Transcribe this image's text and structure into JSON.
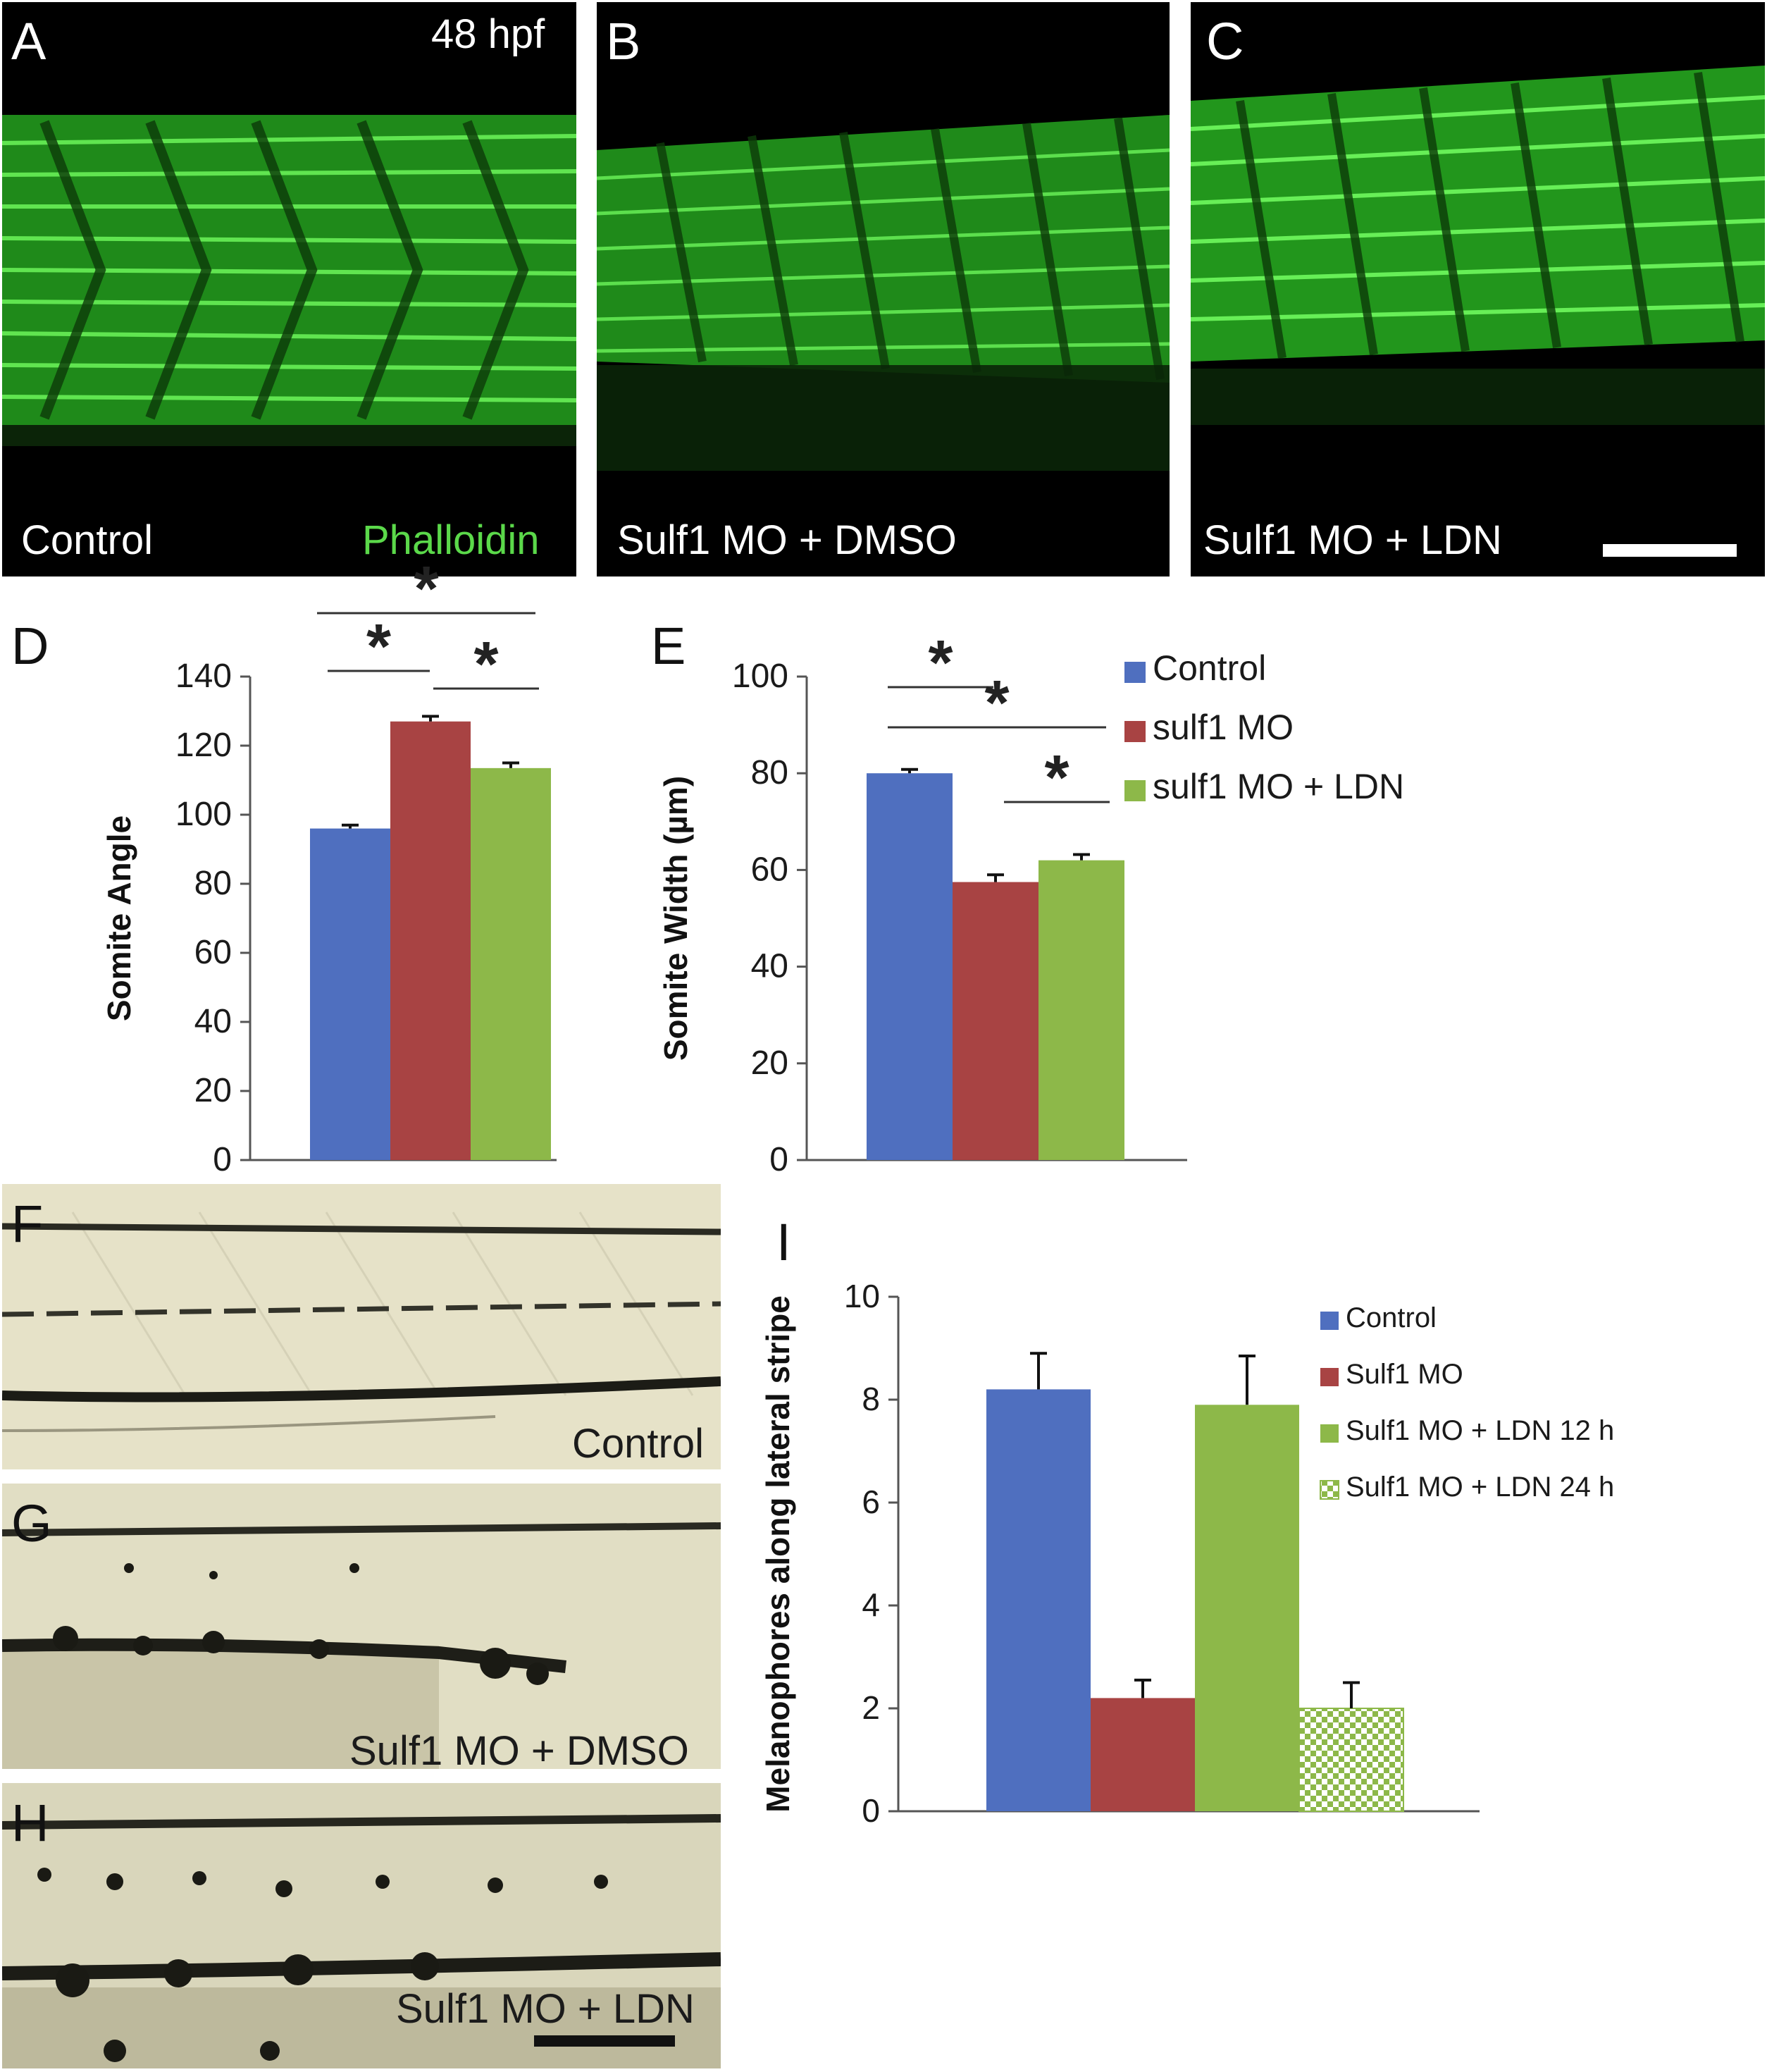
{
  "panels": {
    "A": {
      "letter": "A",
      "stage": "48 hpf",
      "condition": "Control",
      "stain": "Phalloidin"
    },
    "B": {
      "letter": "B",
      "condition": "Sulf1 MO + DMSO"
    },
    "C": {
      "letter": "C",
      "condition": "Sulf1 MO + LDN"
    },
    "D": {
      "letter": "D"
    },
    "E": {
      "letter": "E"
    },
    "F": {
      "letter": "F",
      "condition": "Control"
    },
    "G": {
      "letter": "G",
      "condition": "Sulf1 MO + DMSO"
    },
    "H": {
      "letter": "H",
      "condition": "Sulf1 MO + LDN"
    },
    "I": {
      "letter": "I"
    }
  },
  "colors": {
    "control": "#4f6fbf",
    "sulf1": "#a84343",
    "ldn": "#8db849",
    "phalloidin": "#5bd94a"
  },
  "chart_data": [
    {
      "id": "D",
      "type": "bar",
      "categories": [
        "Control",
        "sulf1 MO",
        "sulf1 MO + LDN"
      ],
      "series": [
        {
          "values": [
            96,
            127,
            113.5
          ],
          "errors": [
            1,
            1.5,
            1.5
          ]
        }
      ],
      "ylabel": "Somite Angle",
      "ylim": [
        0,
        140
      ],
      "yticks": [
        0,
        20,
        40,
        60,
        80,
        100,
        120,
        140
      ],
      "significance": [
        {
          "from": 0,
          "to": 2,
          "label": "*"
        },
        {
          "from": 0,
          "to": 1,
          "label": "*"
        },
        {
          "from": 1,
          "to": 2,
          "label": "*"
        }
      ],
      "grid": false
    },
    {
      "id": "E",
      "type": "bar",
      "categories": [
        "Control",
        "sulf1 MO",
        "sulf1 MO + LDN"
      ],
      "series": [
        {
          "values": [
            80,
            57.5,
            62
          ],
          "errors": [
            0.8,
            1.5,
            1.2
          ]
        }
      ],
      "ylabel": "Somite Width (µm)",
      "ylim": [
        0,
        100
      ],
      "yticks": [
        0,
        20,
        40,
        60,
        80,
        100
      ],
      "legend": [
        "Control",
        "sulf1 MO",
        "sulf1 MO + LDN"
      ],
      "legend_position": "right",
      "significance": [
        {
          "from": 0,
          "to": 1,
          "label": "*"
        },
        {
          "from": 0,
          "to": 2,
          "label": "*"
        },
        {
          "from": 1,
          "to": 2,
          "label": "*"
        }
      ],
      "grid": false
    },
    {
      "id": "I",
      "type": "bar",
      "categories": [
        "Control",
        "Sulf1 MO",
        "Sulf1 MO + LDN 12 h",
        "Sulf1 MO + LDN 24 h"
      ],
      "series": [
        {
          "values": [
            8.2,
            2.2,
            7.9,
            2.0
          ],
          "errors": [
            0.7,
            0.35,
            0.95,
            0.5
          ]
        }
      ],
      "ylabel": "Melanophores along lateral stripe",
      "ylim": [
        0,
        10
      ],
      "yticks": [
        0,
        2,
        4,
        6,
        8,
        10
      ],
      "legend": [
        "Control",
        "Sulf1 MO",
        "Sulf1 MO + LDN 12 h",
        "Sulf1 MO + LDN 24 h"
      ],
      "legend_position": "right",
      "grid": false
    }
  ]
}
